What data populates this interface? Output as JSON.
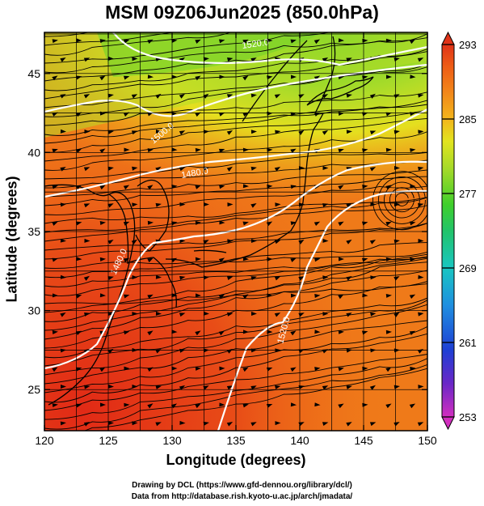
{
  "title": "MSM 09Z06Jun2025 (850.0hPa)",
  "x_axis": {
    "label": "Longitude (degrees)",
    "ticks": [
      "120",
      "125",
      "130",
      "135",
      "140",
      "145",
      "150"
    ],
    "range": [
      120,
      150
    ]
  },
  "y_axis": {
    "label": "Latitude  (degrees)",
    "ticks": [
      "25",
      "30",
      "35",
      "40",
      "45"
    ],
    "range": [
      22.4,
      47.6
    ]
  },
  "colorbar": {
    "ticks": [
      "253",
      "261",
      "269",
      "277",
      "285",
      "293"
    ],
    "range": [
      253,
      293
    ],
    "colors": [
      "#d22fbf",
      "#6a27c7",
      "#1e3fd4",
      "#1f8fe0",
      "#19c6c2",
      "#22c46a",
      "#3fcf2b",
      "#9fd92a",
      "#e2e41f",
      "#f3b51b",
      "#f2881a",
      "#ee5d16",
      "#e03318"
    ]
  },
  "contours": [
    {
      "label": "1520.0"
    },
    {
      "label": "1500.0"
    },
    {
      "label": "1480.0"
    },
    {
      "label": "1480.0"
    },
    {
      "label": "1520.0"
    }
  ],
  "credits": {
    "line1": "Drawing by DCL (https://www.gfd-dennou.org/library/dcl/)",
    "line2": "Data from http://database.rish.kyoto-u.ac.jp/arch/jmadata/"
  },
  "colors": {
    "warm": "#ee6a17",
    "hot": "#e33a18",
    "mild": "#f3a01b",
    "cool": "#9fdc2a",
    "contour": "#ffffff"
  }
}
